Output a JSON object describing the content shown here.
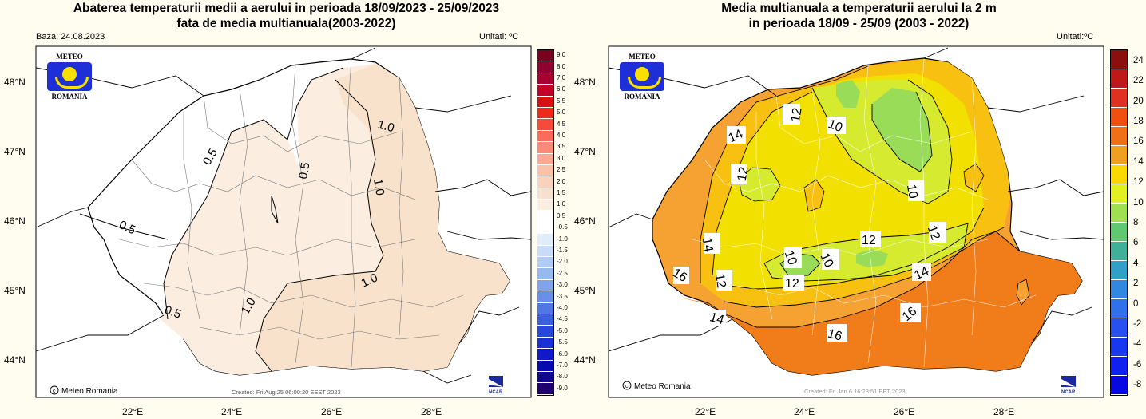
{
  "left": {
    "title_line1": "Abaterea temperaturii medii a aerului in perioada 18/09/2023 - 25/09/2023",
    "title_line2": "fata de media multianuala(2003-2022)",
    "base": "Baza: 24.08.2023",
    "units": "Unitati: ºC",
    "created": "Created: Fri Aug 25 06:00:20 EEST 2023",
    "lon_labels": [
      "22°E",
      "24°E",
      "26°E",
      "28°E"
    ],
    "lat_labels": [
      "48°N",
      "47°N",
      "46°N",
      "45°N",
      "44°N"
    ],
    "contour_labels": [
      "0.5",
      "0.5",
      "0.5",
      "0.5",
      "1.0",
      "1.0",
      "1.0",
      "1.0"
    ],
    "colorbar_labels": [
      "9.0",
      "8.0",
      "7.0",
      "6.0",
      "5.5",
      "5.0",
      "4.5",
      "4.0",
      "3.5",
      "3.0",
      "2.5",
      "2.0",
      "1.5",
      "1.0",
      "0.5",
      "-0.5",
      "-1.0",
      "-1.5",
      "-2.0",
      "-2.5",
      "-3.0",
      "-3.5",
      "-4.0",
      "-4.5",
      "-5.0",
      "-5.5",
      "-6.0",
      "-7.0",
      "-8.0",
      "-9.0"
    ],
    "colorbar_colors": [
      "#7a0020",
      "#900030",
      "#a80030",
      "#c40028",
      "#dc1010",
      "#ee2a1a",
      "#f84a3a",
      "#fb6a5a",
      "#fc8a78",
      "#fda894",
      "#fbc2a8",
      "#f8d2bc",
      "#f7e0cc",
      "#faeee0",
      "#ffffff",
      "#ffffff",
      "#e0ecf8",
      "#c8dcf8",
      "#b0ccf4",
      "#98b8f0",
      "#80a4ec",
      "#6890e8",
      "#5078e4",
      "#3860e0",
      "#2848dc",
      "#1830d4",
      "#1018c8",
      "#0808b0",
      "#100890",
      "#200070"
    ]
  },
  "right": {
    "title_line1": "Media multianuala a temperaturii aerului la 2 m",
    "title_line2": "in perioada 18/09 - 25/09 (2003 - 2022)",
    "units": "Unitati:ºC",
    "created": "Created: Fri Jan  6 16:23:51 EET 2023",
    "lon_labels": [
      "22°E",
      "24°E",
      "26°E",
      "28°E"
    ],
    "lat_labels": [
      "48°N",
      "47°N",
      "46°N",
      "45°N",
      "44°N"
    ],
    "contour_labels": [
      "12",
      "10",
      "14",
      "12",
      "10",
      "12",
      "12",
      "14",
      "10",
      "12",
      "10",
      "12",
      "14",
      "16",
      "16",
      "14",
      "16"
    ],
    "colorbar_labels": [
      "24",
      "22",
      "20",
      "18",
      "16",
      "14",
      "12",
      "10",
      "8",
      "6",
      "4",
      "2",
      "0",
      "-2",
      "-4",
      "-6",
      "-8"
    ],
    "colorbar_colors": [
      "#8a1010",
      "#c01818",
      "#e03020",
      "#ee5010",
      "#f07018",
      "#f0a020",
      "#f8d800",
      "#e0f020",
      "#a0e050",
      "#60c870",
      "#40b098",
      "#30a0c8",
      "#3088e0",
      "#3070ea",
      "#2850f0",
      "#1838f0",
      "#1020f0",
      "#0808e0"
    ]
  },
  "logo": {
    "top": "METEO",
    "bottom": "ROMANIA"
  },
  "credit": "Meteo Romania",
  "ncar": "NCAR"
}
